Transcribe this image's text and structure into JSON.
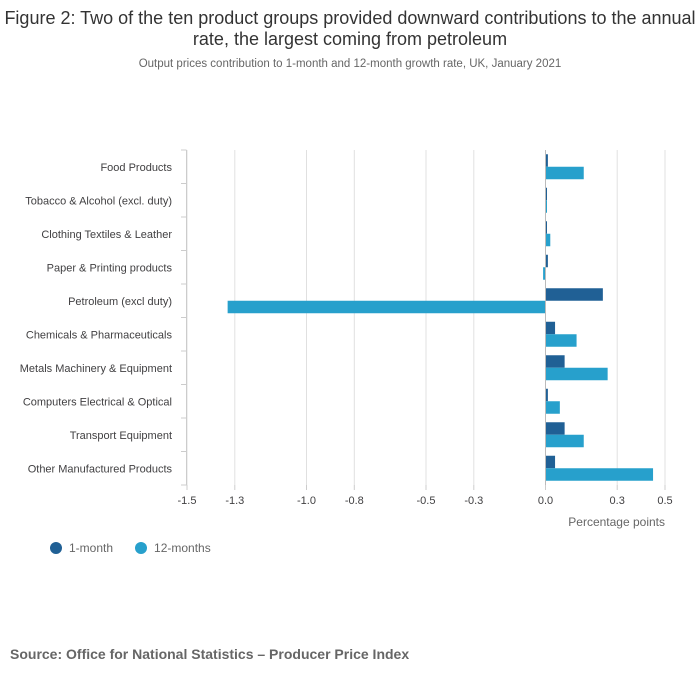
{
  "title": "Figure 2: Two of the ten product groups provided downward contributions to the annual rate, the largest coming from petroleum",
  "subtitle": "Output prices contribution to 1-month and 12-month growth rate, UK, January 2021",
  "source": "Source: Office for National Statistics – Producer Price Index",
  "colors": {
    "one_month": "#206095",
    "twelve_months": "#27a0cc",
    "grid": "#e0e0e0",
    "axis": "#cccccc"
  },
  "chart_data": {
    "type": "bar",
    "orientation": "horizontal",
    "categories": [
      "Food Products",
      "Tobacco & Alcohol (excl. duty)",
      "Clothing Textiles & Leather",
      "Paper & Printing products",
      "Petroleum (excl duty)",
      "Chemicals & Pharmaceuticals",
      "Metals Machinery & Equipment",
      "Computers Electrical & Optical",
      "Transport Equipment",
      "Other Manufactured Products"
    ],
    "series": [
      {
        "name": "1-month",
        "values": [
          0.01,
          0.0,
          0.0,
          0.01,
          0.24,
          0.04,
          0.08,
          0.01,
          0.08,
          0.04
        ]
      },
      {
        "name": "12-months",
        "values": [
          0.16,
          0.0,
          0.02,
          -0.01,
          -1.33,
          0.13,
          0.26,
          0.06,
          0.16,
          0.45
        ]
      }
    ],
    "xlim": [
      -1.5,
      0.5
    ],
    "xticks": [
      -1.5,
      -1.3,
      -1.0,
      -0.8,
      -0.5,
      -0.3,
      0.0,
      0.3,
      0.5
    ],
    "xtick_labels": [
      "-1.5",
      "-1.3",
      "-1.0",
      "-0.8",
      "-0.5",
      "-0.3",
      "0.0",
      "0.3",
      "0.5"
    ],
    "xlabel": "Percentage points",
    "grid": true,
    "legend_position": "bottom-left"
  }
}
